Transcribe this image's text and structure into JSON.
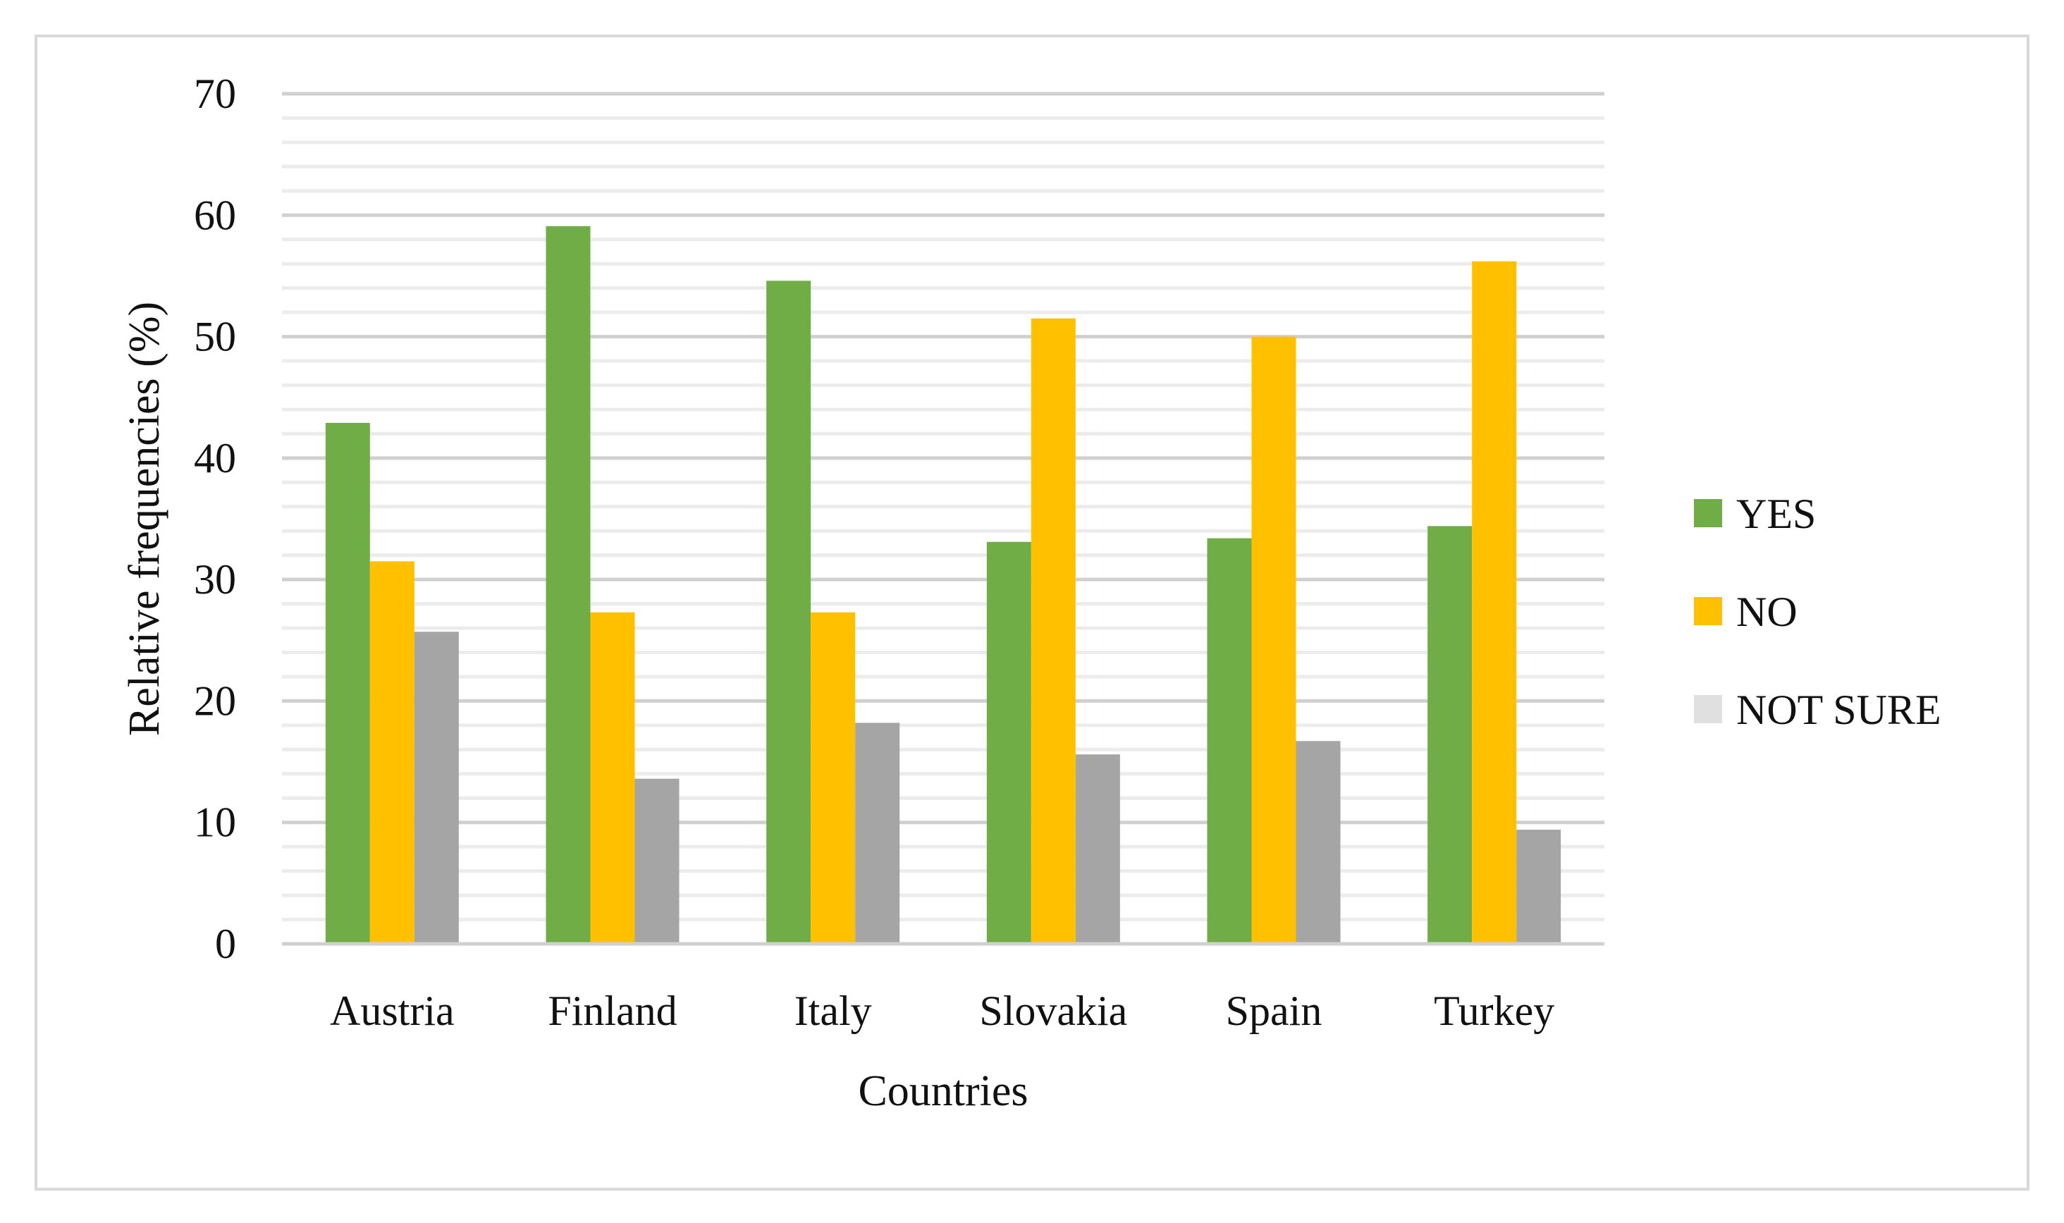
{
  "chart_data": {
    "type": "bar",
    "title": "",
    "xlabel": "Countries",
    "ylabel": "Relative frequencies (%)",
    "ylim": [
      0,
      70
    ],
    "y_major_step": 10,
    "y_minor_step": 2,
    "grid": true,
    "legend_position": "right",
    "categories": [
      "Austria",
      "Finland",
      "Italy",
      "Slovakia",
      "Spain",
      "Turkey"
    ],
    "series": [
      {
        "name": "YES",
        "color": "#70ad47",
        "values": [
          42.9,
          59.1,
          54.6,
          33.1,
          33.4,
          34.4
        ]
      },
      {
        "name": "NO",
        "color": "#ffc000",
        "values": [
          31.5,
          27.3,
          27.3,
          51.5,
          50.0,
          56.2
        ]
      },
      {
        "name": "NOT SURE",
        "color": "#a5a5a5",
        "legend_color": "#e0e0e0",
        "values": [
          25.7,
          13.6,
          18.2,
          15.6,
          16.7,
          9.4
        ]
      }
    ]
  }
}
